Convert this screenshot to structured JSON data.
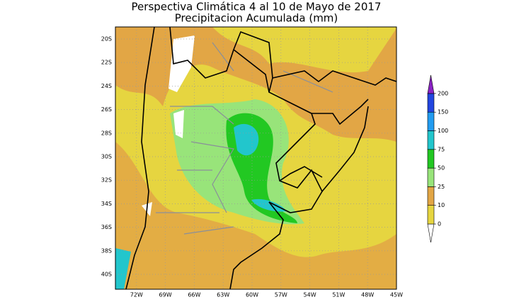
{
  "title": "Perspectiva Climática 4 al 10 de Mayo de 2017",
  "subtitle": "Precipitacion Acumulada (mm)",
  "map": {
    "lat_ticks": [
      {
        "value": -20,
        "label": "20S"
      },
      {
        "value": -22,
        "label": "22S"
      },
      {
        "value": -24,
        "label": "24S"
      },
      {
        "value": -26,
        "label": "26S"
      },
      {
        "value": -28,
        "label": "28S"
      },
      {
        "value": -30,
        "label": "30S"
      },
      {
        "value": -32,
        "label": "32S"
      },
      {
        "value": -34,
        "label": "34S"
      },
      {
        "value": -36,
        "label": "36S"
      },
      {
        "value": -38,
        "label": "38S"
      },
      {
        "value": -40,
        "label": "40S"
      }
    ],
    "lon_ticks": [
      {
        "value": -72,
        "label": "72W"
      },
      {
        "value": -69,
        "label": "69W"
      },
      {
        "value": -66,
        "label": "66W"
      },
      {
        "value": -63,
        "label": "63W"
      },
      {
        "value": -60,
        "label": "60W"
      },
      {
        "value": -57,
        "label": "57W"
      },
      {
        "value": -54,
        "label": "54W"
      },
      {
        "value": -51,
        "label": "51W"
      },
      {
        "value": -48,
        "label": "48W"
      },
      {
        "value": -45,
        "label": "45W"
      }
    ]
  },
  "colorbar": {
    "levels": [
      0,
      10,
      25,
      50,
      75,
      100,
      150,
      200
    ],
    "colors": [
      "#ffffff",
      "#e6d540",
      "#e2a645",
      "#98e47a",
      "#22c822",
      "#22c6cc",
      "#229cf0",
      "#2246e0",
      "#8a22c4"
    ]
  }
}
